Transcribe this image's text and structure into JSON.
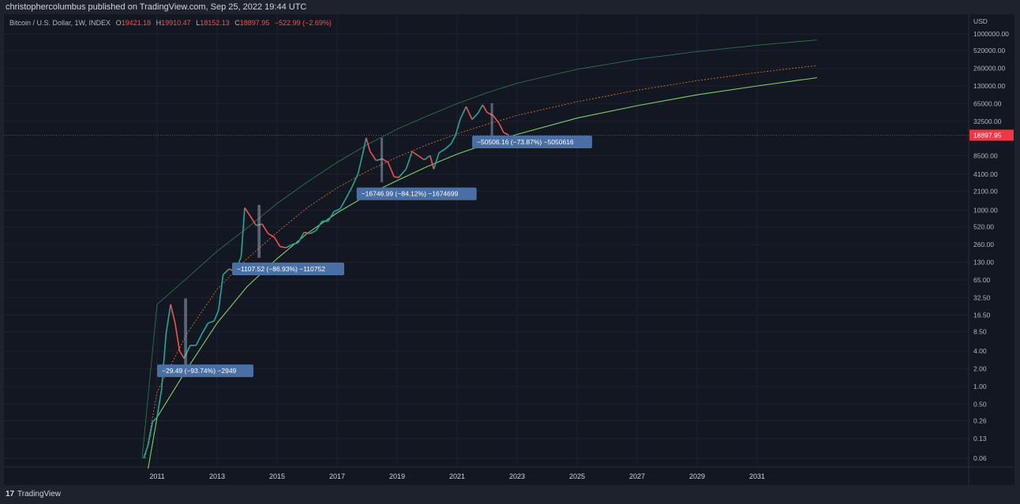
{
  "publisher": "christophercolumbus published on TradingView.com, Sep 25, 2022 19:44 UTC",
  "legend": {
    "symbol": "Bitcoin / U.S. Dollar, 1W, INDEX",
    "open_label": "O",
    "open": "19421.18",
    "high_label": "H",
    "high": "19910.47",
    "low_label": "L",
    "low": "18152.13",
    "close_label": "C",
    "close": "18897.95",
    "change": "−522.99 (−2.69%)"
  },
  "footer": {
    "logo": "17",
    "label": "TradingView"
  },
  "colors": {
    "background": "#131722",
    "up": "#26a69a",
    "down": "#ef5350",
    "price_line": "#f23645",
    "curve_upper": "#2e7d4f",
    "curve_mid": "#e07a2f",
    "curve_lower": "#7fd06a",
    "annotation": "#4a6fa5"
  },
  "chart_data": {
    "type": "line",
    "scale": "log",
    "currency": "USD",
    "last_price": "18897.95",
    "y_ticks": [
      "1000000.00",
      "520000.00",
      "260000.00",
      "130000.00",
      "65000.00",
      "32500.00",
      "8500.00",
      "4100.00",
      "2100.00",
      "1000.00",
      "520.00",
      "260.00",
      "130.00",
      "65.00",
      "32.50",
      "16.50",
      "8.50",
      "4.00",
      "2.00",
      "1.00",
      "0.50",
      "0.26",
      "0.13",
      "0.06"
    ],
    "x_ticks": [
      "2011",
      "2013",
      "2015",
      "2017",
      "2019",
      "2021",
      "2023",
      "2025",
      "2027",
      "2029",
      "2031"
    ],
    "series": [
      {
        "x": [
          2010.55,
          2010.7,
          2010.85,
          2011.0,
          2011.15,
          2011.3,
          2011.45,
          2011.6,
          2011.75,
          2011.9,
          2012.1,
          2012.3,
          2012.5,
          2012.7,
          2012.9,
          2013.05,
          2013.2,
          2013.4,
          2013.6,
          2013.8,
          2013.92,
          2014.1,
          2014.3,
          2014.5,
          2014.7,
          2014.9,
          2015.1,
          2015.3,
          2015.5,
          2015.7,
          2015.9,
          2016.1,
          2016.3,
          2016.5,
          2016.7,
          2016.9,
          2017.1,
          2017.3,
          2017.5,
          2017.7,
          2017.85,
          2017.97,
          2018.1,
          2018.3,
          2018.5,
          2018.7,
          2018.9,
          2019.05,
          2019.3,
          2019.5,
          2019.7,
          2019.9,
          2020.1,
          2020.22,
          2020.4,
          2020.6,
          2020.8,
          2020.95,
          2021.1,
          2021.3,
          2021.5,
          2021.7,
          2021.85,
          2022.0,
          2022.2,
          2022.4,
          2022.55,
          2022.73
        ],
        "y": [
          0.06,
          0.1,
          0.25,
          0.3,
          0.9,
          8,
          25,
          12,
          4,
          3,
          5,
          5,
          8,
          12,
          13,
          20,
          80,
          100,
          90,
          160,
          1100,
          800,
          550,
          580,
          400,
          350,
          240,
          230,
          260,
          280,
          420,
          400,
          450,
          650,
          650,
          950,
          1050,
          1600,
          2500,
          4200,
          9000,
          17000,
          10000,
          7000,
          7500,
          6500,
          3700,
          3600,
          5000,
          10000,
          8500,
          7200,
          8500,
          5000,
          9500,
          11000,
          13500,
          19000,
          35000,
          58000,
          35000,
          45000,
          62000,
          46000,
          41000,
          30000,
          21000,
          18897.95
        ]
      }
    ],
    "curves": [
      {
        "name": "upper",
        "x": [
          2010.5,
          2011,
          2012,
          2013,
          2014,
          2015,
          2016,
          2017,
          2018,
          2019,
          2020,
          2021,
          2022,
          2023,
          2025,
          2027,
          2029,
          2031,
          2033
        ],
        "y": [
          0.06,
          25,
          70,
          200,
          500,
          1300,
          3000,
          6500,
          13000,
          24000,
          40000,
          65000,
          100000,
          145000,
          250000,
          370000,
          500000,
          640000,
          790000
        ]
      },
      {
        "name": "mid",
        "x": [
          2010.6,
          2011,
          2012,
          2013,
          2014,
          2015,
          2016,
          2017,
          2018,
          2019,
          2020,
          2021,
          2022,
          2023,
          2025,
          2027,
          2029,
          2031,
          2033
        ],
        "y": [
          0.06,
          0.8,
          8,
          45,
          150,
          420,
          1100,
          2400,
          4600,
          8000,
          13000,
          20000,
          29000,
          41000,
          70000,
          110000,
          160000,
          220000,
          290000
        ]
      },
      {
        "name": "lower",
        "x": [
          2010.7,
          2011,
          2012,
          2013,
          2014,
          2015,
          2016,
          2017,
          2018,
          2019,
          2020,
          2021,
          2022,
          2023,
          2025,
          2027,
          2029,
          2031,
          2033
        ],
        "y": [
          0.04,
          0.3,
          2,
          12,
          50,
          150,
          400,
          900,
          1800,
          3200,
          5500,
          9000,
          13500,
          19500,
          37000,
          60000,
          92000,
          130000,
          180000
        ]
      }
    ],
    "drawdowns": [
      {
        "label": "−29.49 (−93.74%) −2949",
        "x_start": 2011.9,
        "x_end": 2012.0,
        "y_top": 31.5,
        "y_bottom": 2.0,
        "label_x": 2011.0,
        "label_y": 1.85
      },
      {
        "label": "−1107.52 (−86.93%) −110752",
        "x_start": 2014.35,
        "x_end": 2014.45,
        "y_top": 1230,
        "y_bottom": 155,
        "label_x": 2013.5,
        "label_y": 100
      },
      {
        "label": "−16746.99 (−84.12%) −1674699",
        "x_start": 2018.45,
        "x_end": 2018.52,
        "y_top": 17000,
        "y_bottom": 3000,
        "label_x": 2017.65,
        "label_y": 1900
      },
      {
        "label": "−50506.16 (−73.87%) −5050616",
        "x_start": 2022.12,
        "x_end": 2022.19,
        "y_top": 66000,
        "y_bottom": 17500,
        "label_x": 2021.5,
        "label_y": 14500
      }
    ]
  }
}
